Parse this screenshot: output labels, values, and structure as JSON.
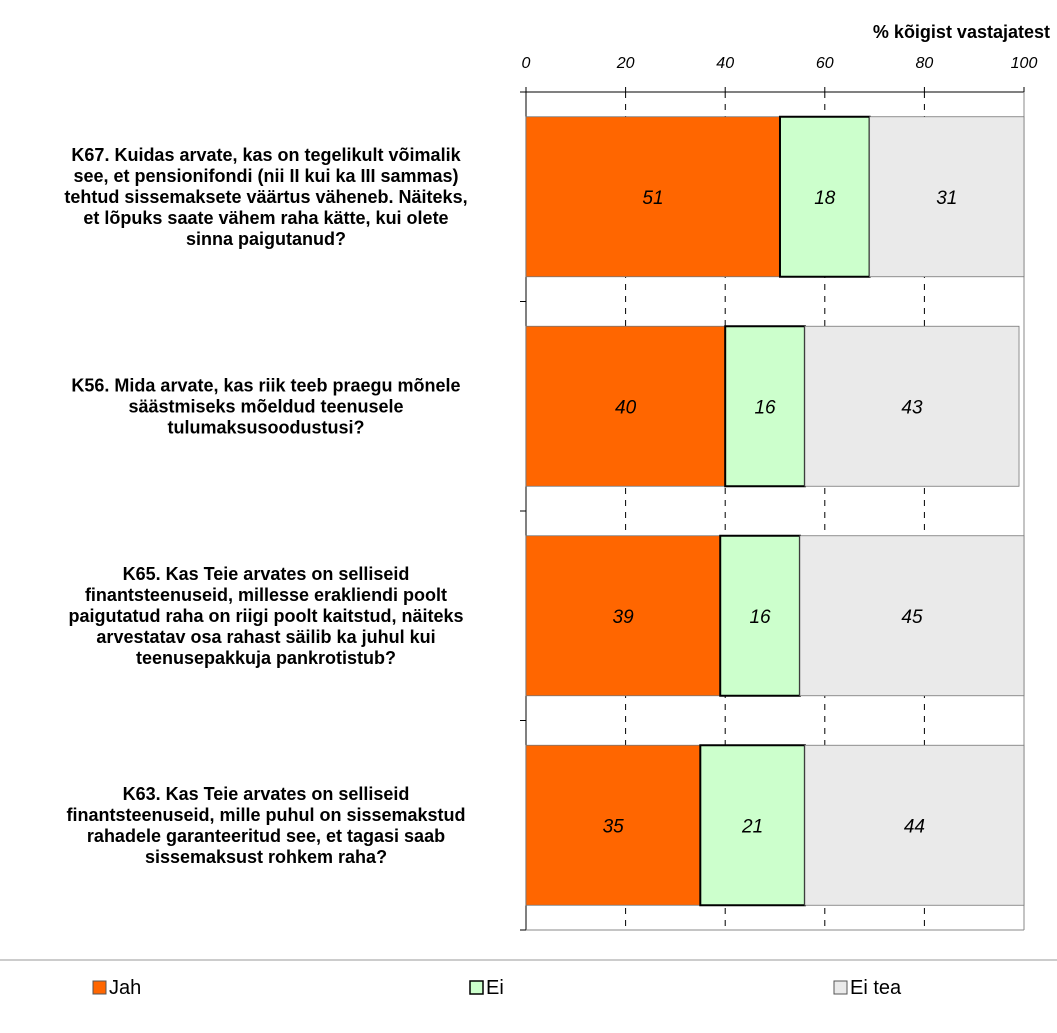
{
  "chart_data": {
    "type": "bar",
    "orientation": "horizontal",
    "stacked": true,
    "x_axis_title": "% kõigist vastajatest",
    "xlim": [
      0,
      100
    ],
    "x_ticks": [
      "0",
      "20",
      "40",
      "60",
      "80",
      "100"
    ],
    "grid": "vertical dashed",
    "legend_position": "bottom",
    "categories": [
      [
        "K67. Kuidas arvate, kas on tegelikult võimalik",
        "see, et pensionifondi (nii II kui ka III sammas)",
        "tehtud sissemaksete väärtus väheneb. Näiteks,",
        "et lõpuks saate vähem raha  kätte, kui olete",
        "sinna paigutanud?"
      ],
      [
        "K56. Mida arvate, kas riik teeb praegu mõnele",
        "säästmiseks mõeldud teenusele",
        "tulumaksusoodustusi?"
      ],
      [
        "K65. Kas Teie arvates on selliseid",
        "finantsteenuseid, millesse erakliendi poolt",
        "paigutatud raha on riigi poolt kaitstud, näiteks",
        "arvestatav osa rahast säilib ka juhul kui",
        "teenusepakkuja pankrotistub?"
      ],
      [
        "K63. Kas Teie arvates on selliseid",
        "finantsteenuseid, mille puhul on sissemakstud",
        "rahadele garanteeritud see, et tagasi saab",
        "sissemaksust rohkem raha?"
      ]
    ],
    "series": [
      {
        "name": "Jah",
        "color": "#ff6600",
        "values": [
          51,
          40,
          39,
          35
        ]
      },
      {
        "name": "Ei",
        "color": "#ccffcc",
        "values": [
          18,
          16,
          16,
          21
        ]
      },
      {
        "name": "Ei tea",
        "color": "#eaeaea",
        "values": [
          31,
          43,
          45,
          44
        ]
      }
    ]
  }
}
